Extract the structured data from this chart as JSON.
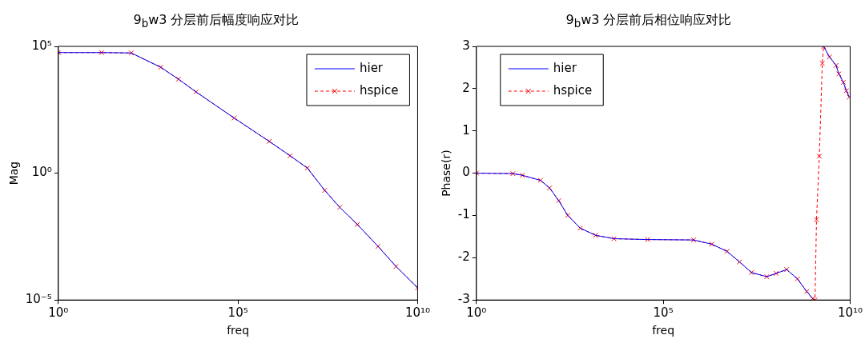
{
  "chart_data": [
    {
      "type": "line",
      "title": "9$_{b}$w3 分层前后幅度响应对比",
      "xlabel": "freq",
      "ylabel": "Mag",
      "log": "xy",
      "grid": false,
      "legend": "top right",
      "xlim": [
        1,
        10000000000
      ],
      "xticks": [
        {
          "value": 1,
          "label": "10⁰"
        },
        {
          "value": 100000,
          "label": "10⁵"
        },
        {
          "value": 10000000000,
          "label": "10¹⁰"
        }
      ],
      "ylim": [
        1e-05,
        100000
      ],
      "yticks": [
        {
          "value": 1e-05,
          "label": "10⁻⁵"
        },
        {
          "value": 1,
          "label": "10⁰"
        },
        {
          "value": 100000,
          "label": "10⁵"
        }
      ],
      "x": [
        1,
        16,
        107,
        708,
        2200,
        6800,
        78000,
        740000,
        2800000,
        8500000,
        26000000,
        68000000,
        210000000,
        790000000,
        2500000000,
        10000000000
      ],
      "series": [
        {
          "name": "hier",
          "color": "#0000ff",
          "line_style": "solid",
          "marker": "none",
          "values": [
            57000,
            57000,
            55000,
            15000,
            5100,
            1600,
            150,
            18,
            4.9,
            1.6,
            0.21,
            0.045,
            0.0095,
            0.0013,
            0.00021,
            3e-05
          ]
        },
        {
          "name": "hspice",
          "color": "#ff0000",
          "line_style": "dashed",
          "marker": "cross",
          "values": [
            57000,
            57000,
            55000,
            15000,
            5100,
            1600,
            150,
            18,
            4.9,
            1.6,
            0.21,
            0.045,
            0.0095,
            0.0013,
            0.00021,
            3e-05
          ]
        }
      ]
    },
    {
      "type": "line",
      "title": "9$_{b}$w3 分层前后相位响应对比",
      "xlabel": "freq",
      "ylabel": "Phase(r)",
      "log": "x",
      "grid": false,
      "legend": "top left",
      "xlim": [
        1,
        10000000000
      ],
      "xticks": [
        {
          "value": 1,
          "label": "10⁰"
        },
        {
          "value": 100000,
          "label": "10⁵"
        },
        {
          "value": 10000000000,
          "label": "10¹⁰"
        }
      ],
      "ylim": [
        -3,
        3
      ],
      "yticks": [
        -3,
        -2,
        -1,
        0,
        1,
        2,
        3
      ],
      "x": [
        1,
        9.5,
        17,
        52,
        91,
        160,
        280,
        600,
        1550,
        4800,
        38000,
        650000,
        2000000,
        5100000,
        11000000,
        23000000,
        59000000,
        105000000,
        200000000,
        390000000,
        690000000,
        1000000000,
        1150000000,
        1260000000,
        1500000000,
        1800000000,
        1950000000,
        2800000000,
        4200000000,
        5000000000,
        6600000000,
        7900000000,
        9500000000
      ],
      "series": [
        {
          "name": "hier",
          "color": "#0000ff",
          "line_style": "solid",
          "marker": "none",
          "values": [
            0,
            -0.01,
            -0.05,
            -0.17,
            -0.35,
            -0.65,
            -1.0,
            -1.3,
            -1.47,
            -1.55,
            -1.57,
            -1.58,
            -1.68,
            -1.85,
            -2.1,
            -2.35,
            -2.45,
            -2.37,
            -2.28,
            -2.5,
            -2.8,
            -2.97,
            null,
            null,
            null,
            null,
            3.0,
            2.75,
            2.55,
            2.35,
            2.15,
            1.95,
            1.8
          ]
        },
        {
          "name": "hspice",
          "color": "#ff0000",
          "line_style": "dashed",
          "marker": "cross",
          "values": [
            0,
            -0.01,
            -0.05,
            -0.17,
            -0.35,
            -0.65,
            -1.0,
            -1.3,
            -1.47,
            -1.55,
            -1.57,
            -1.58,
            -1.68,
            -1.85,
            -2.1,
            -2.35,
            -2.45,
            -2.37,
            -2.28,
            -2.5,
            -2.8,
            -2.97,
            -3.0,
            -1.1,
            0.4,
            2.6,
            3.0,
            2.75,
            2.55,
            2.35,
            2.15,
            1.95,
            1.8
          ]
        }
      ]
    }
  ]
}
